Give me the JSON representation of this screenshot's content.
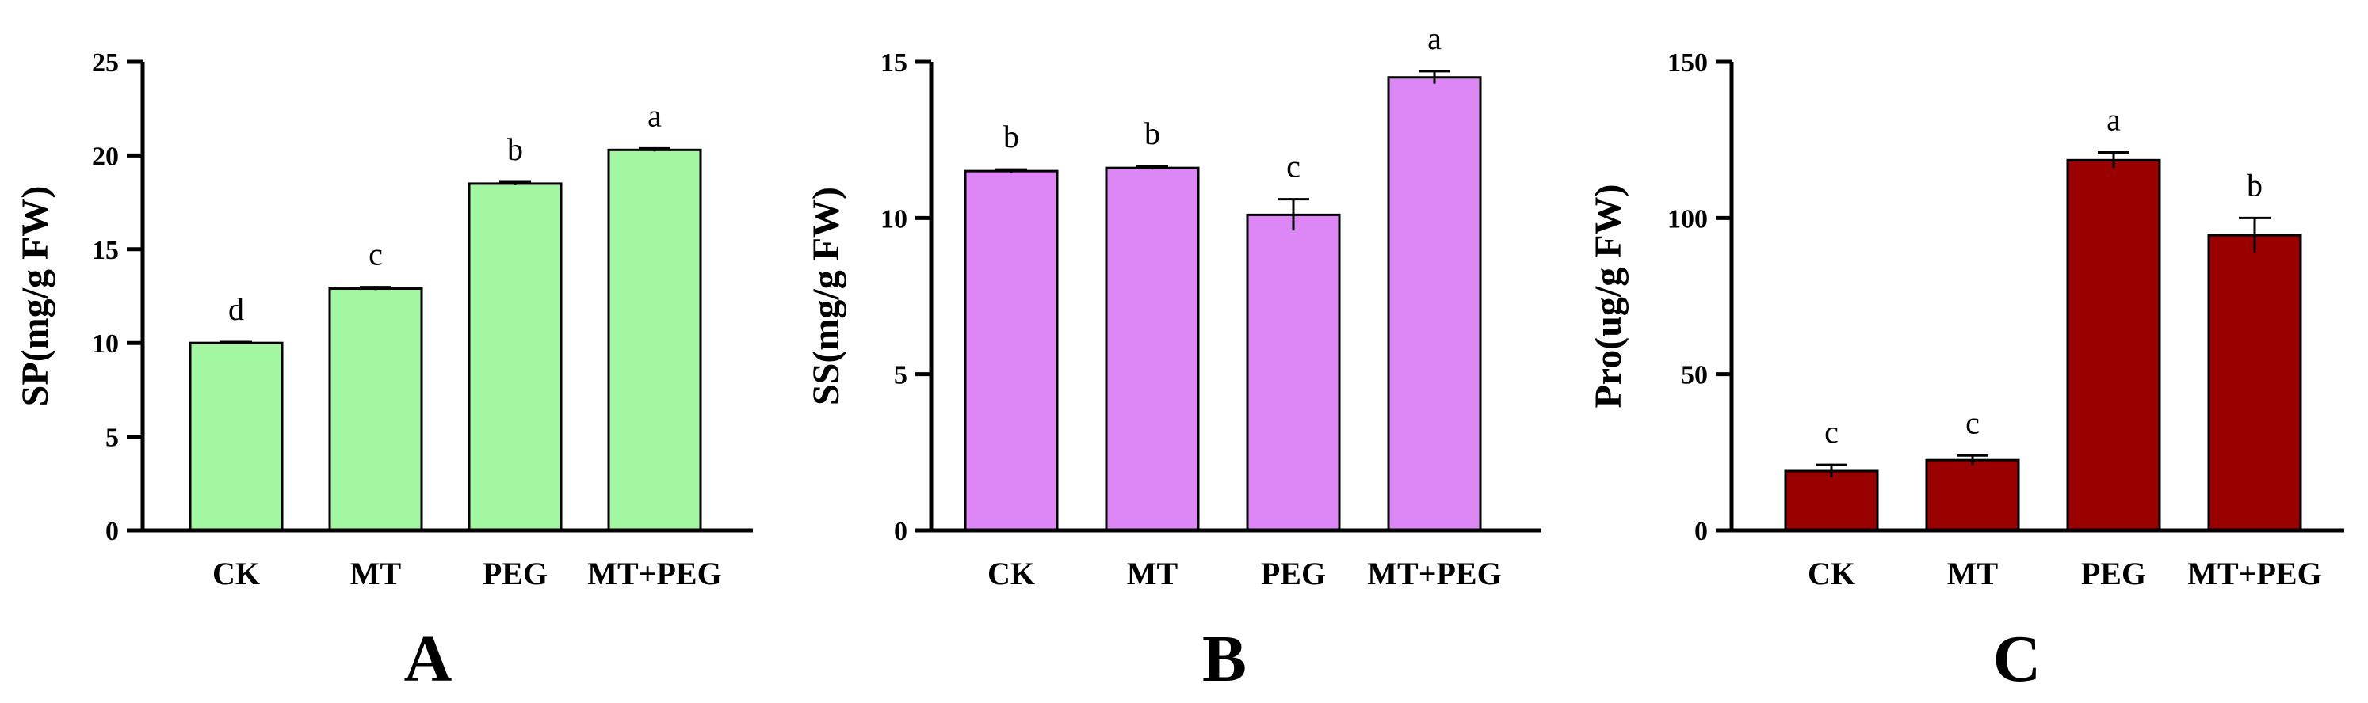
{
  "chart_data": [
    {
      "type": "bar",
      "panel": "A",
      "ylabel": "SP(mg/g FW)",
      "categories": [
        "CK",
        "MT",
        "PEG",
        "MT+PEG"
      ],
      "values": [
        10.0,
        12.9,
        18.5,
        20.3
      ],
      "errors": [
        0.05,
        0.08,
        0.08,
        0.08
      ],
      "significance": [
        "d",
        "c",
        "b",
        "a"
      ],
      "ylim": [
        0,
        25
      ],
      "yticks": [
        0,
        5,
        10,
        15,
        20,
        25
      ],
      "color": "#a3f7a1"
    },
    {
      "type": "bar",
      "panel": "B",
      "ylabel": "SS(mg/g FW)",
      "categories": [
        "CK",
        "MT",
        "PEG",
        "MT+PEG"
      ],
      "values": [
        11.5,
        11.6,
        10.1,
        14.5
      ],
      "errors": [
        0.05,
        0.05,
        0.5,
        0.2
      ],
      "significance": [
        "b",
        "b",
        "c",
        "a"
      ],
      "ylim": [
        0,
        15
      ],
      "yticks": [
        0,
        5,
        10,
        15
      ],
      "color": "#dc87f5"
    },
    {
      "type": "bar",
      "panel": "C",
      "ylabel": "Pro(ug/g FW)",
      "categories": [
        "CK",
        "MT",
        "PEG",
        "MT+PEG"
      ],
      "values": [
        19.0,
        22.5,
        118.5,
        94.5
      ],
      "errors": [
        2.0,
        1.5,
        2.5,
        5.5
      ],
      "significance": [
        "c",
        "c",
        "a",
        "b"
      ],
      "ylim": [
        0,
        150
      ],
      "yticks": [
        0,
        50,
        100,
        150
      ],
      "color": "#9a0000"
    }
  ]
}
